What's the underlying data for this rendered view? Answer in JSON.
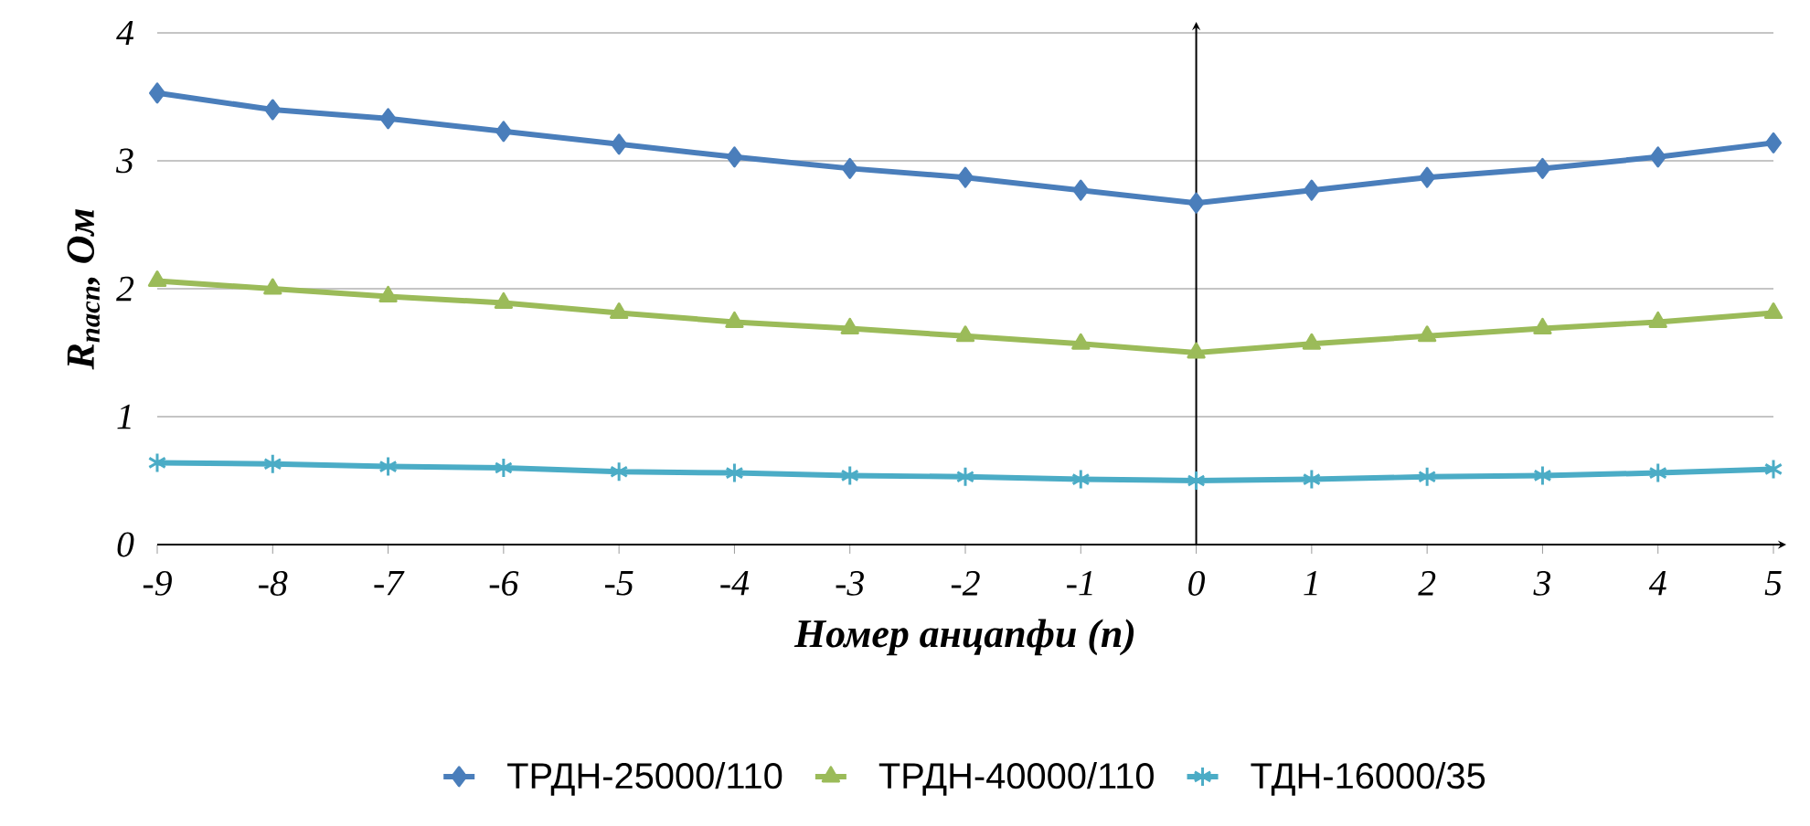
{
  "chart_data": {
    "type": "line",
    "xlabel": "Номер анцапфи (n)",
    "ylabel": "R$_{пасп}$, Ом",
    "x": [
      -9,
      -8,
      -7,
      -6,
      -5,
      -4,
      -3,
      -2,
      -1,
      0,
      1,
      2,
      3,
      4,
      5
    ],
    "series": [
      {
        "name": "ТРДН-25000/110",
        "color": "#4a7ebb",
        "marker": "diamond",
        "values": [
          3.53,
          3.4,
          3.33,
          3.23,
          3.13,
          3.03,
          2.94,
          2.87,
          2.77,
          2.67,
          2.77,
          2.87,
          2.94,
          3.03,
          3.14
        ]
      },
      {
        "name": "ТРДН-40000/110",
        "color": "#9bbb59",
        "marker": "triangle",
        "values": [
          2.06,
          2.0,
          1.94,
          1.89,
          1.81,
          1.74,
          1.69,
          1.63,
          1.57,
          1.5,
          1.57,
          1.63,
          1.69,
          1.74,
          1.81
        ]
      },
      {
        "name": "ТДН-16000/35",
        "color": "#4bacc6",
        "marker": "cross",
        "values": [
          0.64,
          0.63,
          0.61,
          0.6,
          0.57,
          0.56,
          0.54,
          0.53,
          0.51,
          0.5,
          0.51,
          0.53,
          0.54,
          0.56,
          0.59
        ]
      }
    ],
    "xlim": [
      -9,
      5
    ],
    "ylim": [
      0,
      4
    ],
    "xticks": [
      -9,
      -8,
      -7,
      -6,
      -5,
      -4,
      -3,
      -2,
      -1,
      0,
      1,
      2,
      3,
      4,
      5
    ],
    "yticks": [
      0,
      1,
      2,
      3,
      4
    ],
    "grid": "y",
    "legend": "bottom",
    "line_style": "solid"
  }
}
